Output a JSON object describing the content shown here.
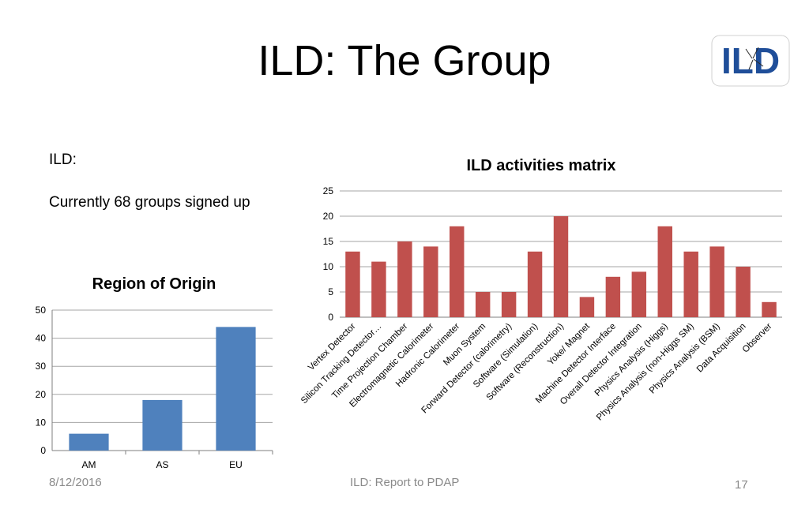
{
  "slide": {
    "title": "ILD: The Group",
    "logo_text": "ILD",
    "intro_label": "ILD:",
    "intro_text": "Currently 68 groups signed up",
    "footer_date": "8/12/2016",
    "footer_center": "ILD: Report to PDAP",
    "page_number": "17"
  },
  "chart_data": [
    {
      "type": "bar",
      "title": "Region of Origin",
      "categories": [
        "AM",
        "AS",
        "EU"
      ],
      "values": [
        6,
        18,
        44
      ],
      "ylim": [
        0,
        50
      ],
      "yticks": [
        0,
        10,
        20,
        30,
        40,
        50
      ],
      "xlabel": "",
      "ylabel": "",
      "grid": true,
      "color": "#4f81bd"
    },
    {
      "type": "bar",
      "title": "ILD activities matrix",
      "categories": [
        "Vertex Detector",
        "Silicon Tracking Detector…",
        "Time Projection Chamber",
        "Electromagnetic Calorimeter",
        "Hadronic Calorimeter",
        "Muon System",
        "Forward Detector (calorimetry)",
        "Software (Simulation)",
        "Software (Reconstruction)",
        "Yoke/ Magnet",
        "Machine Detector Interface",
        "Overall Detector Integration",
        "Physics Analysis (Higgs)",
        "Physics Analysis (non-Higgs SM)",
        "Physics Analysis (BSM)",
        "Data Acquisition",
        "Observer"
      ],
      "values": [
        13,
        11,
        15,
        14,
        18,
        5,
        5,
        13,
        20,
        4,
        8,
        9,
        18,
        13,
        14,
        10,
        3
      ],
      "ylim": [
        0,
        25
      ],
      "yticks": [
        0,
        5,
        10,
        15,
        20,
        25
      ],
      "xlabel": "",
      "ylabel": "",
      "grid": true,
      "color": "#c0504d"
    }
  ]
}
